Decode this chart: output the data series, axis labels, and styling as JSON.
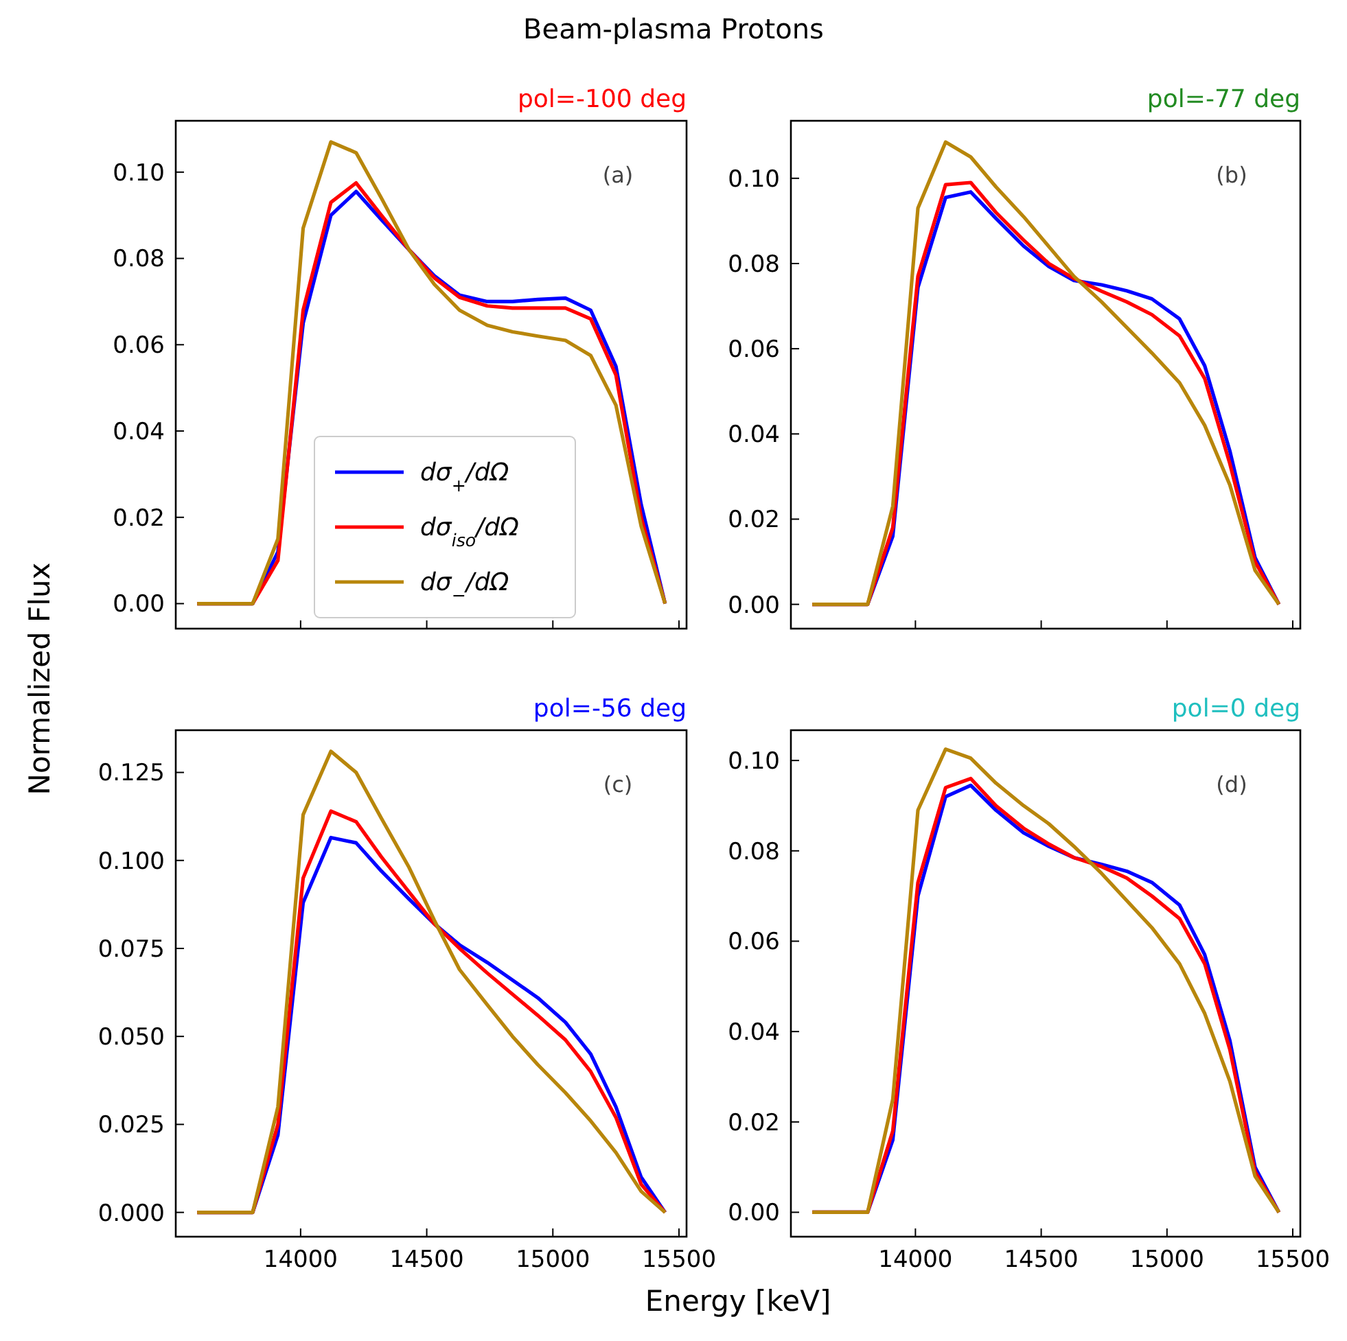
{
  "chart_data": [
    {
      "type": "line",
      "title": "Beam-plasma Protons",
      "subtitle": "pol=-100 deg",
      "ylabel": "Normalized Flux",
      "annotations": [
        "(a)"
      ],
      "legend": "bottom",
      "tick_labels": "y",
      "x": [
        13590,
        13810,
        13910,
        14010,
        14120,
        14220,
        14320,
        14430,
        14530,
        14630,
        14740,
        14840,
        14940,
        15050,
        15150,
        15250,
        15350,
        15445
      ],
      "xlim": [
        13505,
        15530
      ],
      "xticks": [
        14000,
        14500,
        15000,
        15500
      ],
      "ylim": [
        -0.0058,
        0.1119
      ],
      "yticks": [
        {
          "value": 0,
          "label": "0.00"
        },
        0.02,
        0.04,
        0.06,
        0.08,
        {
          "value": 0.1,
          "label": "0.10"
        }
      ],
      "series": [
        {
          "name": "dσ$_{+}$/dΩ",
          "color": "#0000ff",
          "values": [
            0,
            0,
            0.012,
            0.065,
            0.09,
            0.0955,
            0.089,
            0.082,
            0.076,
            0.0715,
            0.07,
            0.07,
            0.0705,
            0.0708,
            0.068,
            0.055,
            0.023,
            0
          ]
        },
        {
          "name": "dσ$_{iso}$/dΩ",
          "color": "#ff0000",
          "values": [
            0,
            0,
            0.01,
            0.068,
            0.093,
            0.0975,
            0.09,
            0.082,
            0.0755,
            0.071,
            0.069,
            0.0685,
            0.0685,
            0.0685,
            0.066,
            0.053,
            0.02,
            0
          ]
        },
        {
          "name": "dσ$_{−}$/dΩ",
          "color": "#b8860b",
          "values": [
            0,
            0,
            0.015,
            0.087,
            0.107,
            0.1045,
            0.094,
            0.082,
            0.074,
            0.068,
            0.0645,
            0.063,
            0.062,
            0.061,
            0.0575,
            0.046,
            0.018,
            0
          ]
        }
      ]
    },
    {
      "type": "line",
      "subtitle": "pol=-77 deg",
      "annotations": [
        "(b)"
      ],
      "tick_labels": "y",
      "x": [
        13590,
        13810,
        13910,
        14010,
        14120,
        14220,
        14320,
        14430,
        14530,
        14630,
        14740,
        14840,
        14940,
        15050,
        15150,
        15250,
        15350,
        15445
      ],
      "xlim": [
        13505,
        15530
      ],
      "xticks": [
        14000,
        14500,
        15000,
        15500
      ],
      "ylim": [
        -0.0057,
        0.1135
      ],
      "yticks": [
        {
          "value": 0,
          "label": "0.00"
        },
        0.02,
        0.04,
        0.06,
        0.08,
        {
          "value": 0.1,
          "label": "0.10"
        }
      ],
      "series": [
        {
          "color": "#0000ff",
          "values": [
            0,
            0,
            0.016,
            0.0744,
            0.0955,
            0.0968,
            0.0906,
            0.0841,
            0.0793,
            0.076,
            0.075,
            0.0736,
            0.0717,
            0.067,
            0.056,
            0.036,
            0.011,
            0
          ]
        },
        {
          "color": "#ff0000",
          "values": [
            0,
            0,
            0.018,
            0.077,
            0.0985,
            0.099,
            0.092,
            0.0855,
            0.08,
            0.0765,
            0.0735,
            0.071,
            0.068,
            0.063,
            0.053,
            0.033,
            0.01,
            0
          ]
        },
        {
          "color": "#b8860b",
          "values": [
            0,
            0,
            0.023,
            0.093,
            0.1085,
            0.105,
            0.098,
            0.091,
            0.084,
            0.077,
            0.071,
            0.065,
            0.059,
            0.052,
            0.042,
            0.028,
            0.008,
            0
          ]
        }
      ]
    },
    {
      "type": "line",
      "subtitle": "pol=-56 deg",
      "xlabel": "Energy [keV]",
      "annotations": [
        "(c)"
      ],
      "x": [
        13590,
        13810,
        13910,
        14010,
        14120,
        14220,
        14320,
        14430,
        14530,
        14630,
        14740,
        14840,
        14940,
        15050,
        15150,
        15250,
        15350,
        15445
      ],
      "xlim": [
        13505,
        15530
      ],
      "xticks": [
        14000,
        14500,
        15000,
        15500
      ],
      "ylim": [
        -0.0069,
        0.137
      ],
      "yticks": [
        {
          "value": 0,
          "label": "0.000"
        },
        0.025,
        {
          "value": 0.05,
          "label": "0.050"
        },
        {
          "value": 0.075,
          "label": "0.075"
        },
        {
          "value": 0.1,
          "label": "0.100"
        },
        0.125
      ],
      "series": [
        {
          "color": "#0000ff",
          "values": [
            0,
            0,
            0.022,
            0.088,
            0.1065,
            0.105,
            0.097,
            0.089,
            0.082,
            0.076,
            0.071,
            0.066,
            0.061,
            0.054,
            0.045,
            0.03,
            0.01,
            0
          ]
        },
        {
          "color": "#ff0000",
          "values": [
            0,
            0,
            0.025,
            0.095,
            0.114,
            0.111,
            0.101,
            0.091,
            0.082,
            0.075,
            0.068,
            0.062,
            0.056,
            0.049,
            0.04,
            0.027,
            0.008,
            0
          ]
        },
        {
          "color": "#b8860b",
          "values": [
            0,
            0,
            0.03,
            0.113,
            0.131,
            0.125,
            0.112,
            0.098,
            0.083,
            0.069,
            0.059,
            0.05,
            0.042,
            0.034,
            0.026,
            0.017,
            0.006,
            0
          ]
        }
      ]
    },
    {
      "type": "line",
      "subtitle": "pol=0 deg",
      "annotations": [
        "(d)"
      ],
      "x": [
        13590,
        13810,
        13910,
        14010,
        14120,
        14220,
        14320,
        14430,
        14530,
        14630,
        14740,
        14840,
        14940,
        15050,
        15150,
        15250,
        15350,
        15445
      ],
      "xlim": [
        13505,
        15530
      ],
      "xticks": [
        14000,
        14500,
        15000,
        15500
      ],
      "ylim": [
        -0.0054,
        0.1067
      ],
      "yticks": [
        {
          "value": 0,
          "label": "0.00"
        },
        0.02,
        0.04,
        0.06,
        0.08,
        {
          "value": 0.1,
          "label": "0.10"
        }
      ],
      "series": [
        {
          "color": "#0000ff",
          "values": [
            0,
            0,
            0.016,
            0.07,
            0.092,
            0.0945,
            0.089,
            0.084,
            0.081,
            0.0785,
            0.077,
            0.0755,
            0.073,
            0.068,
            0.057,
            0.038,
            0.01,
            0
          ]
        },
        {
          "color": "#ff0000",
          "values": [
            0,
            0,
            0.018,
            0.073,
            0.094,
            0.096,
            0.09,
            0.085,
            0.0815,
            0.0785,
            0.0765,
            0.074,
            0.07,
            0.065,
            0.055,
            0.036,
            0.009,
            0
          ]
        },
        {
          "color": "#b8860b",
          "values": [
            0,
            0,
            0.025,
            0.089,
            0.1025,
            0.1005,
            0.095,
            0.09,
            0.086,
            0.081,
            0.075,
            0.069,
            0.063,
            0.055,
            0.044,
            0.029,
            0.008,
            0
          ]
        }
      ]
    }
  ]
}
